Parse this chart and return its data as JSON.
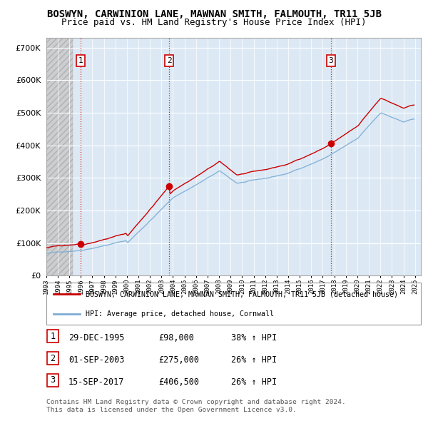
{
  "title": "BOSWYN, CARWINION LANE, MAWNAN SMITH, FALMOUTH, TR11 5JB",
  "subtitle": "Price paid vs. HM Land Registry's House Price Index (HPI)",
  "title_fontsize": 10,
  "subtitle_fontsize": 9,
  "ylabel_ticks": [
    "£0",
    "£100K",
    "£200K",
    "£300K",
    "£400K",
    "£500K",
    "£600K",
    "£700K"
  ],
  "ytick_values": [
    0,
    100000,
    200000,
    300000,
    400000,
    500000,
    600000,
    700000
  ],
  "ylim": [
    0,
    730000
  ],
  "xlim_start": 1993.0,
  "xlim_end": 2025.5,
  "sales": [
    {
      "date_label": "29-DEC-1995",
      "date_num": 1995.99,
      "price": 98000,
      "hpi_pct": "38%",
      "num": 1
    },
    {
      "date_label": "01-SEP-2003",
      "date_num": 2003.67,
      "price": 275000,
      "hpi_pct": "26%",
      "num": 2
    },
    {
      "date_label": "15-SEP-2017",
      "date_num": 2017.71,
      "price": 406500,
      "hpi_pct": "26%",
      "num": 3
    }
  ],
  "legend_line1": "BOSWYN, CARWINION LANE, MAWNAN SMITH, FALMOUTH, TR11 5JB (detached house)",
  "legend_line2": "HPI: Average price, detached house, Cornwall",
  "footer1": "Contains HM Land Registry data © Crown copyright and database right 2024.",
  "footer2": "This data is licensed under the Open Government Licence v3.0.",
  "red_color": "#cc0000",
  "blue_color": "#7dadd4",
  "chart_bg_color": "#dce9f5",
  "hatch_bg_color": "#cccccc",
  "background_color": "#ffffff",
  "grid_color": "#ffffff",
  "vline_color": "#cc0000",
  "xtick_years": [
    1993,
    1994,
    1995,
    1996,
    1997,
    1998,
    1999,
    2000,
    2001,
    2002,
    2003,
    2004,
    2005,
    2006,
    2007,
    2008,
    2009,
    2010,
    2011,
    2012,
    2013,
    2014,
    2015,
    2016,
    2017,
    2018,
    2019,
    2020,
    2021,
    2022,
    2023,
    2024,
    2025
  ]
}
